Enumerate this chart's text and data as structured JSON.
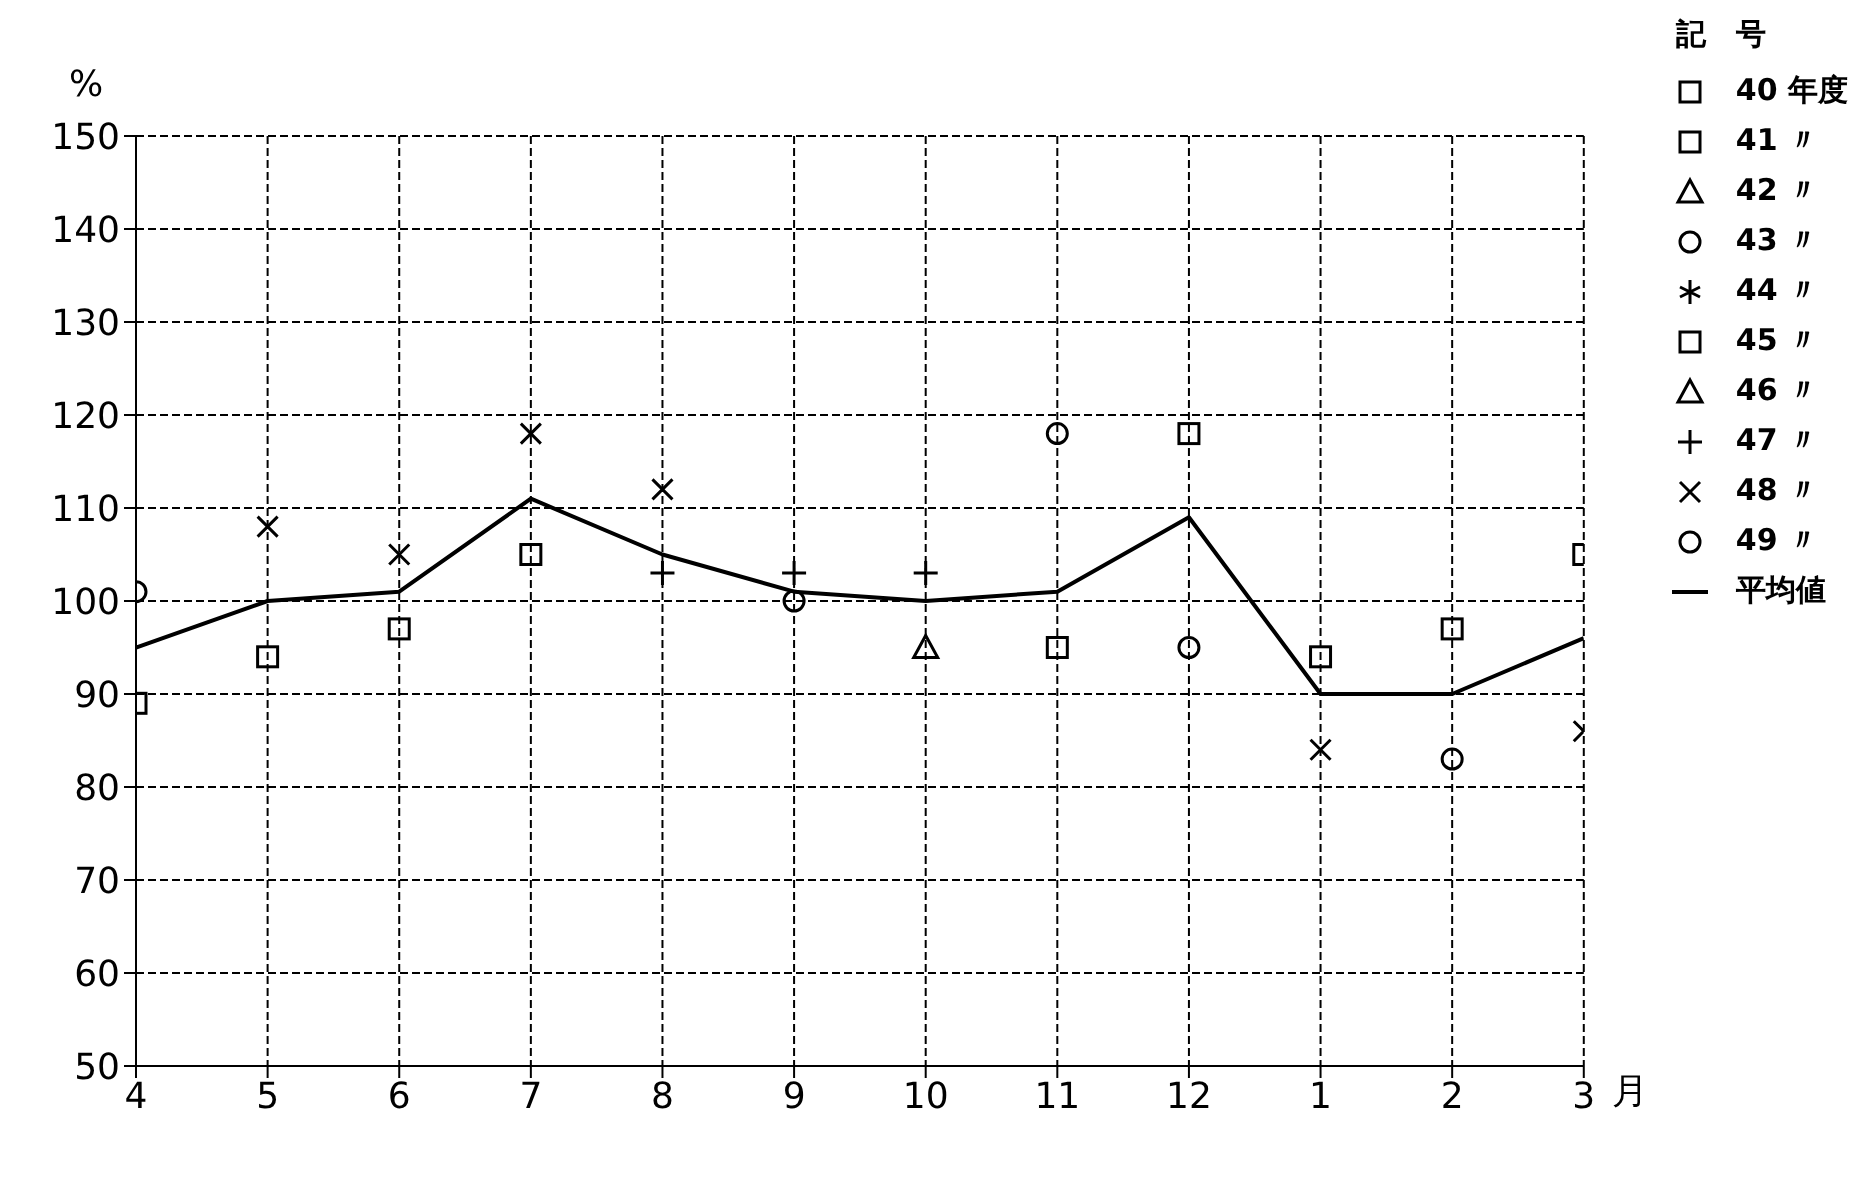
{
  "chart_data": {
    "type": "scatter",
    "ylabel": "%",
    "xlabel": "月",
    "legend_title": "記　号",
    "legend": "top right",
    "grid": true,
    "categories": [
      "4",
      "5",
      "6",
      "7",
      "8",
      "9",
      "10",
      "11",
      "12",
      "1",
      "2",
      "3"
    ],
    "ylim": [
      50,
      150
    ],
    "yticks": [
      50,
      60,
      70,
      80,
      90,
      100,
      110,
      120,
      130,
      140,
      150
    ],
    "series": [
      {
        "name": "40 年度",
        "color": "#000000",
        "marker": "square",
        "values": [
          null,
          null,
          null,
          null,
          null,
          null,
          null,
          null,
          null,
          null,
          null,
          null
        ]
      },
      {
        "name": "41 〃",
        "color": "#000000",
        "marker": "square",
        "values": [
          89,
          94,
          97,
          105,
          null,
          null,
          null,
          95,
          118,
          94,
          97,
          105
        ]
      },
      {
        "name": "42 〃",
        "color": "#000000",
        "marker": "triangle",
        "values": [
          null,
          null,
          null,
          null,
          null,
          null,
          null,
          null,
          null,
          null,
          null,
          null
        ]
      },
      {
        "name": "43 〃",
        "color": "#000000",
        "marker": "circle",
        "values": [
          null,
          null,
          null,
          null,
          null,
          null,
          null,
          null,
          95,
          null,
          83,
          null
        ]
      },
      {
        "name": "44 〃",
        "color": "#000000",
        "marker": "star",
        "values": [
          null,
          null,
          null,
          null,
          null,
          null,
          null,
          null,
          null,
          null,
          null,
          null
        ]
      },
      {
        "name": "45 〃",
        "color": "#000000",
        "marker": "square",
        "values": [
          null,
          null,
          null,
          null,
          null,
          null,
          null,
          null,
          null,
          null,
          null,
          null
        ]
      },
      {
        "name": "46 〃",
        "color": "#000000",
        "marker": "triangle",
        "values": [
          null,
          null,
          null,
          null,
          null,
          null,
          95,
          null,
          null,
          null,
          null,
          null
        ]
      },
      {
        "name": "47 〃",
        "color": "#000000",
        "marker": "cross",
        "values": [
          null,
          null,
          null,
          null,
          103,
          103,
          103,
          null,
          null,
          null,
          null,
          null
        ]
      },
      {
        "name": "48 〃",
        "color": "#000000",
        "marker": "x",
        "values": [
          null,
          108,
          105,
          118,
          112,
          null,
          null,
          null,
          null,
          84,
          null,
          86
        ]
      },
      {
        "name": "49 〃",
        "color": "#000000",
        "marker": "circle",
        "values": [
          101,
          null,
          null,
          null,
          null,
          100,
          null,
          118,
          null,
          null,
          null,
          null
        ]
      },
      {
        "name": "平均値",
        "type": "line",
        "color": "#000000",
        "marker": "none",
        "line_style": "solid",
        "values": [
          95,
          100,
          101,
          111,
          105,
          101,
          100,
          101,
          109,
          90,
          90,
          96
        ]
      }
    ]
  }
}
